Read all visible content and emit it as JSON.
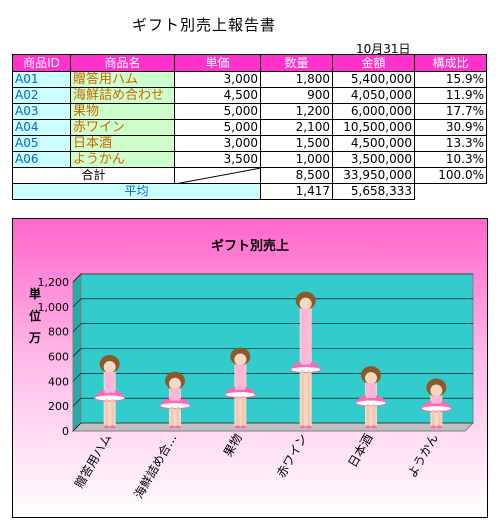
{
  "report": {
    "title": "ギフト別売上報告書",
    "date": "10月31日"
  },
  "table": {
    "headers": [
      "商品ID",
      "商品名",
      "単価",
      "数量",
      "金額",
      "構成比"
    ],
    "rows": [
      {
        "id": "A01",
        "name": "贈答用ハム",
        "price": "3,000",
        "qty": "1,800",
        "amount": "5,400,000",
        "ratio": "15.9%"
      },
      {
        "id": "A02",
        "name": "海鮮詰め合わせ",
        "price": "4,500",
        "qty": "900",
        "amount": "4,050,000",
        "ratio": "11.9%"
      },
      {
        "id": "A03",
        "name": "果物",
        "price": "5,000",
        "qty": "1,200",
        "amount": "6,000,000",
        "ratio": "17.7%"
      },
      {
        "id": "A04",
        "name": "赤ワイン",
        "price": "5,000",
        "qty": "2,100",
        "amount": "10,500,000",
        "ratio": "30.9%"
      },
      {
        "id": "A05",
        "name": "日本酒",
        "price": "3,000",
        "qty": "1,500",
        "amount": "4,500,000",
        "ratio": "13.3%"
      },
      {
        "id": "A06",
        "name": "ようかん",
        "price": "3,500",
        "qty": "1,000",
        "amount": "3,500,000",
        "ratio": "10.3%"
      }
    ],
    "total": {
      "label": "合計",
      "qty": "8,500",
      "amount": "33,950,000",
      "ratio": "100.0%"
    },
    "average": {
      "label": "平均",
      "qty": "1,417",
      "amount": "5,658,333"
    }
  },
  "colors": {
    "header_bg": "#ff33cc",
    "id_bg": "#ccffff",
    "name_bg": "#ccffcc",
    "plot_bg": "#33cccc",
    "chart_bg_top": "#ff66cc"
  },
  "chart_data": {
    "type": "bar",
    "title": "ギフト別売上",
    "ylabel": "単位万",
    "categories": [
      "贈答用ハム",
      "海鮮詰め合…",
      "果物",
      "赤ワイン",
      "日本酒",
      "ようかん"
    ],
    "values": [
      540,
      405,
      600,
      1050,
      450,
      350
    ],
    "ylim": [
      0,
      1200
    ],
    "yticks": [
      "0",
      "200",
      "400",
      "600",
      "800",
      "1,000",
      "1,200"
    ],
    "grid": true,
    "bar_style": "picture-stacked doll icons"
  }
}
